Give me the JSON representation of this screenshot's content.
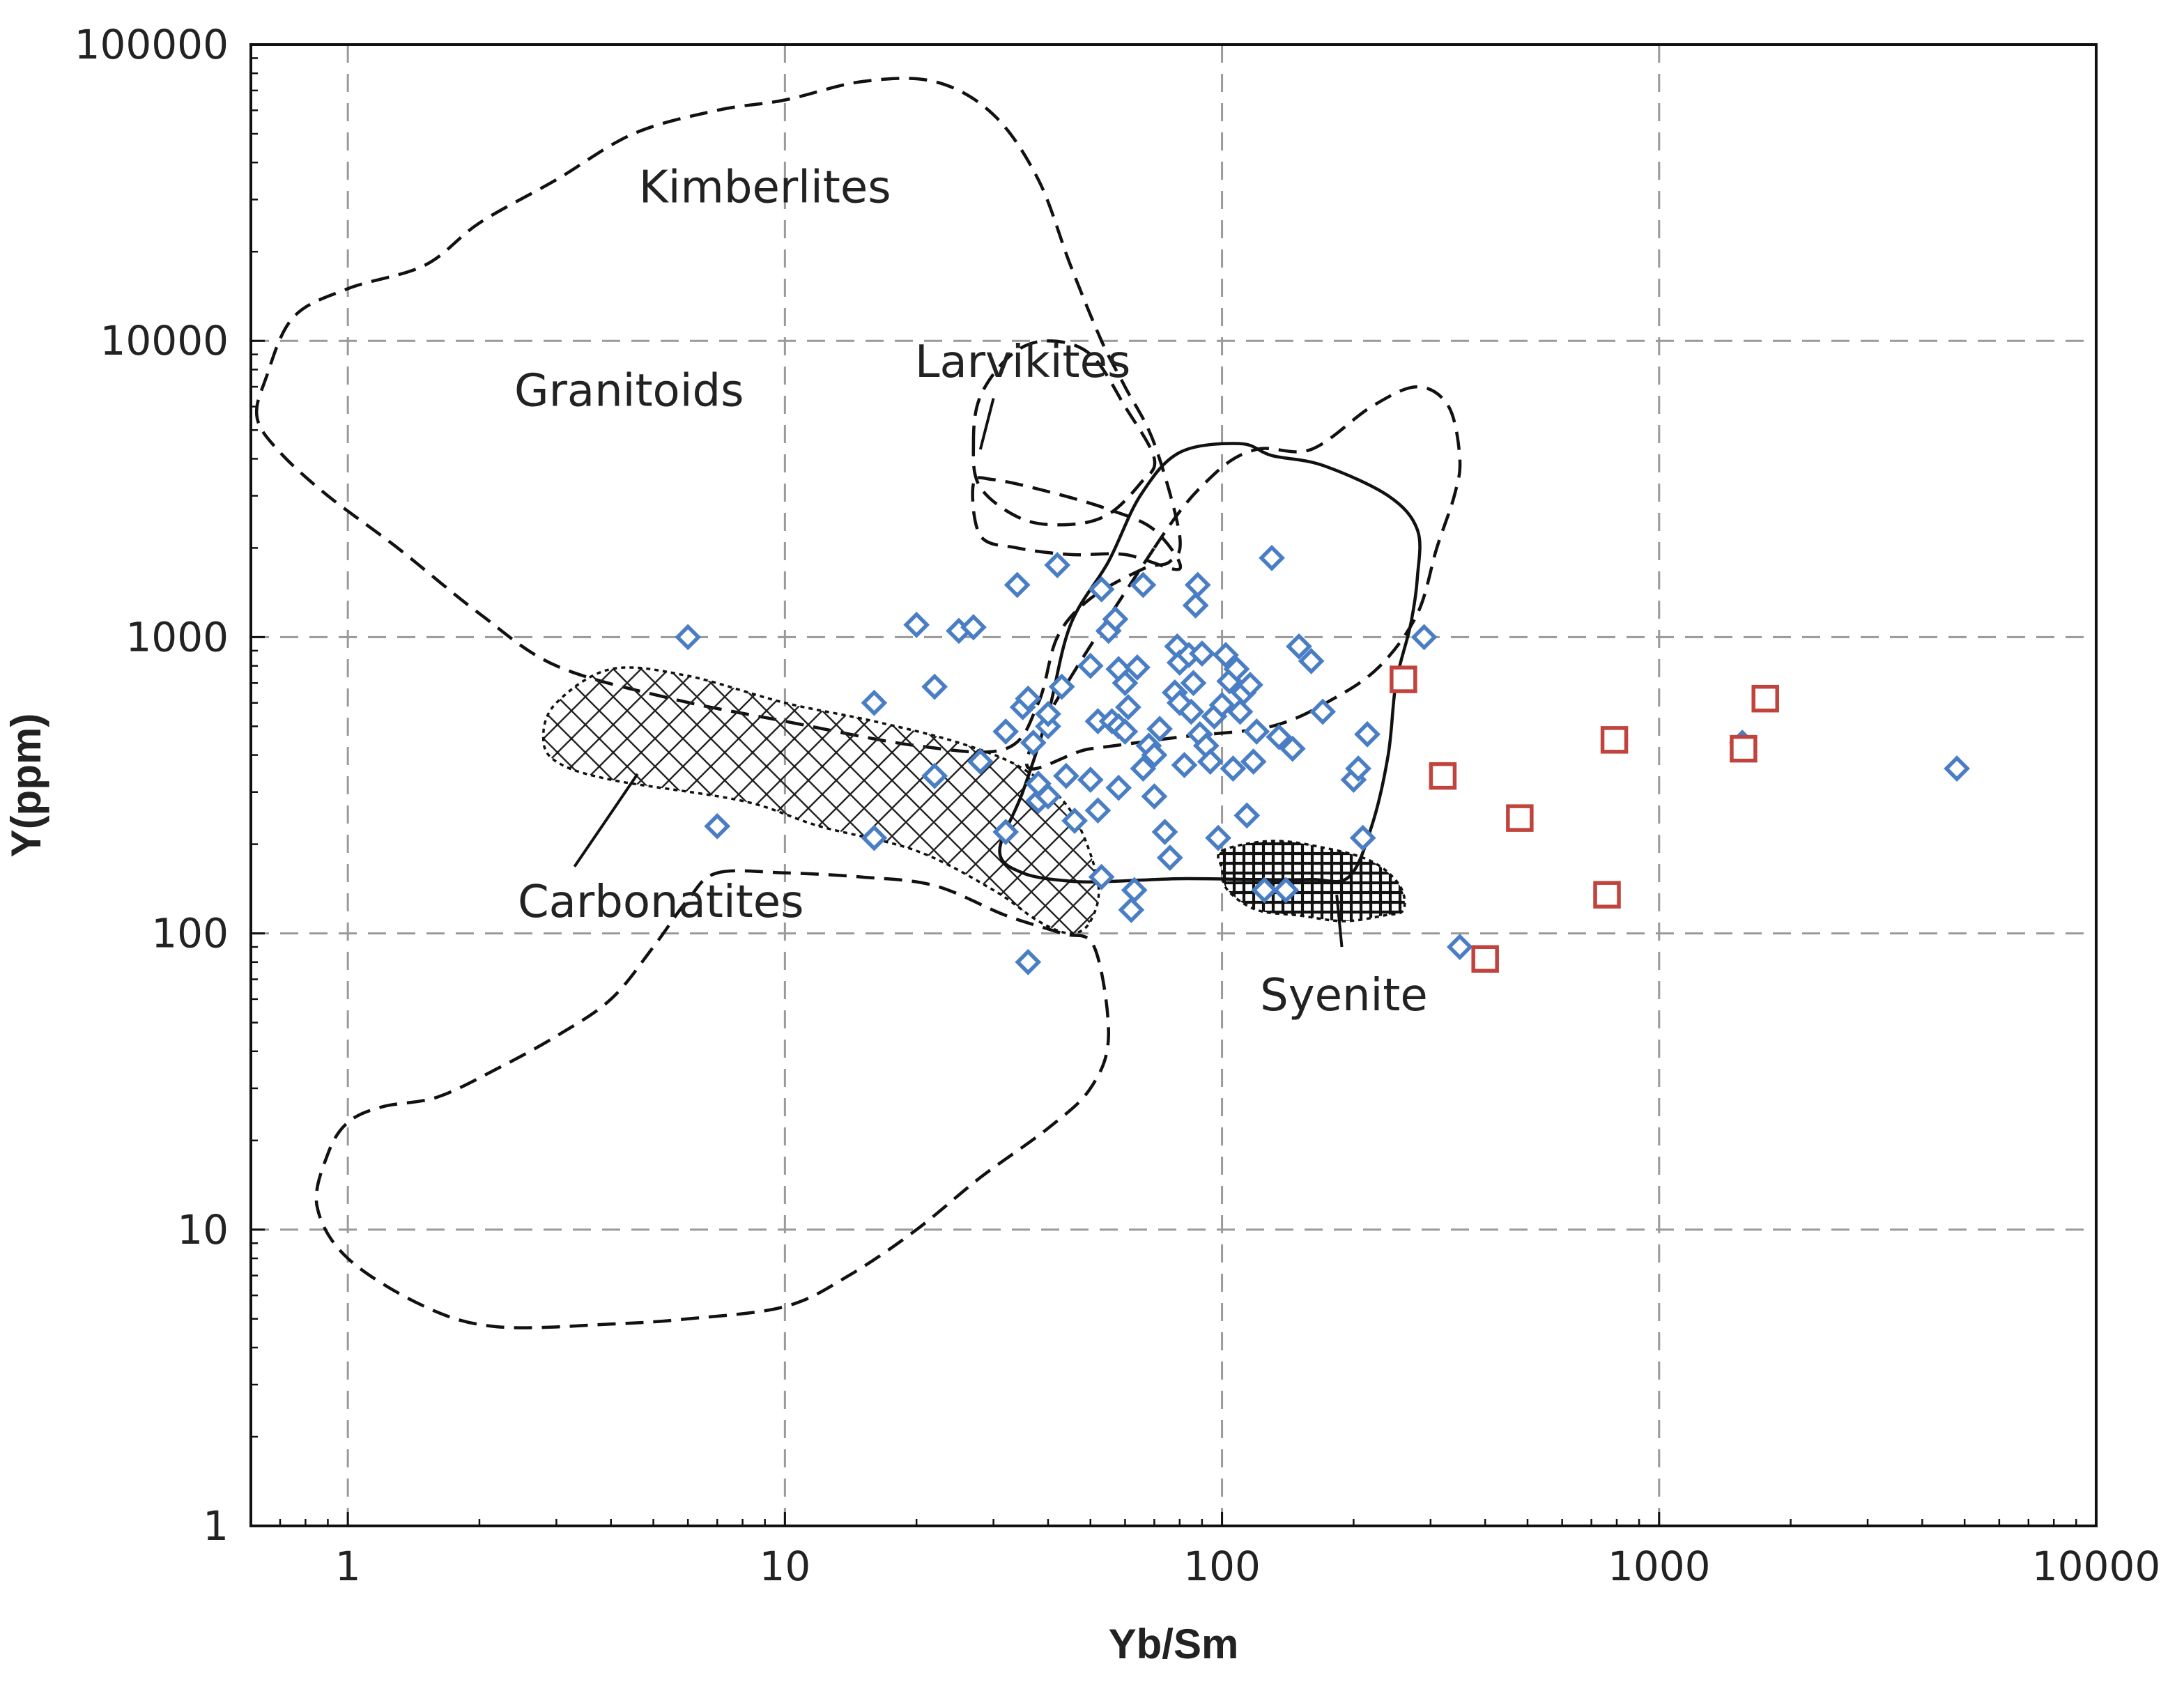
{
  "chart_data": {
    "type": "scatter",
    "title": "",
    "xlabel": "Yb/Sm",
    "ylabel": "Y(ppm)",
    "xscale": "log",
    "yscale": "log",
    "xlim": [
      0.6,
      10000
    ],
    "ylim": [
      1,
      100000
    ],
    "grid": true,
    "x_ticks": [
      1,
      10,
      100,
      1000,
      10000
    ],
    "x_tick_labels": [
      "1",
      "10",
      "100",
      "1000",
      "10000"
    ],
    "y_ticks": [
      1,
      10,
      100,
      1000,
      10000,
      100000
    ],
    "y_tick_labels": [
      "1",
      "10",
      "100",
      "1000",
      "10000",
      "100000"
    ],
    "fields": [
      {
        "name": "Granitoids",
        "label": "Granitoids",
        "style": "dashed",
        "label_at": [
          4.4,
          6800
        ],
        "outline": [
          [
            0.62,
            5500
          ],
          [
            0.65,
            7500
          ],
          [
            0.75,
            12000
          ],
          [
            1.0,
            15000
          ],
          [
            1.5,
            18000
          ],
          [
            2.0,
            25000
          ],
          [
            3.0,
            35000
          ],
          [
            4.5,
            50000
          ],
          [
            7.0,
            60000
          ],
          [
            10,
            65000
          ],
          [
            15,
            75000
          ],
          [
            22,
            75000
          ],
          [
            30,
            58000
          ],
          [
            38,
            35000
          ],
          [
            45,
            18000
          ],
          [
            53,
            10000
          ],
          [
            60,
            7000
          ],
          [
            70,
            4500
          ],
          [
            80,
            2200
          ],
          [
            76,
            1800
          ],
          [
            66,
            1700
          ],
          [
            50,
            1350
          ],
          [
            42,
            1000
          ],
          [
            38,
            600
          ],
          [
            32,
            420
          ],
          [
            20,
            430
          ],
          [
            10,
            520
          ],
          [
            5.5,
            620
          ],
          [
            3.0,
            800
          ],
          [
            2.0,
            1200
          ],
          [
            1.3,
            2000
          ],
          [
            0.9,
            3000
          ],
          [
            0.7,
            4200
          ]
        ]
      },
      {
        "name": "Larvikites",
        "label": "Larvikites",
        "style": "dashed",
        "label_at": [
          35,
          8500
        ],
        "outlines": [
          [
            [
              27,
              4500
            ],
            [
              28,
              6500
            ],
            [
              33,
              9000
            ],
            [
              40,
              10000
            ],
            [
              50,
              9000
            ],
            [
              60,
              6000
            ],
            [
              70,
              4000
            ],
            [
              65,
              3300
            ],
            [
              55,
              2600
            ],
            [
              45,
              2400
            ],
            [
              35,
              2500
            ],
            [
              28,
              3200
            ]
          ],
          [
            [
              27,
              3300
            ],
            [
              28,
              2200
            ],
            [
              34,
              2000
            ],
            [
              45,
              1900
            ],
            [
              60,
              1900
            ],
            [
              80,
              1700
            ],
            [
              70,
              2300
            ],
            [
              55,
              2700
            ],
            [
              40,
              3100
            ],
            [
              30,
              3400
            ]
          ]
        ]
      },
      {
        "name": "Kimberlites",
        "label": "Kimberlites",
        "style": "dashed",
        "label_at": [
          9,
          33000
        ],
        "outline": [
          [
            7,
            160
          ],
          [
            10,
            160
          ],
          [
            15,
            155
          ],
          [
            22,
            145
          ],
          [
            32,
            115
          ],
          [
            43,
            100
          ],
          [
            51,
            90
          ],
          [
            55,
            45
          ],
          [
            50,
            30
          ],
          [
            40,
            22
          ],
          [
            28,
            15
          ],
          [
            20,
            10
          ],
          [
            14,
            7
          ],
          [
            10,
            5.5
          ],
          [
            6,
            5
          ],
          [
            4,
            4.8
          ],
          [
            2.2,
            4.7
          ],
          [
            1.5,
            5.5
          ],
          [
            1.0,
            8
          ],
          [
            0.85,
            12
          ],
          [
            0.9,
            18
          ],
          [
            1.0,
            23
          ],
          [
            1.2,
            26
          ],
          [
            1.6,
            28
          ],
          [
            2.2,
            35
          ],
          [
            3,
            45
          ],
          [
            4,
            60
          ],
          [
            5,
            90
          ],
          [
            6,
            130
          ]
        ]
      },
      {
        "name": "Carbonatites",
        "label": "Carbonatites",
        "style": "crosshatch",
        "label_at": [
          5.2,
          128
        ],
        "outline": [
          [
            3.0,
            600
          ],
          [
            4.0,
            780
          ],
          [
            6,
            740
          ],
          [
            10,
            600
          ],
          [
            16,
            520
          ],
          [
            25,
            440
          ],
          [
            35,
            360
          ],
          [
            45,
            260
          ],
          [
            52,
            150
          ],
          [
            50,
            110
          ],
          [
            45,
            100
          ],
          [
            38,
            110
          ],
          [
            30,
            140
          ],
          [
            20,
            190
          ],
          [
            12,
            230
          ],
          [
            8,
            280
          ],
          [
            4,
            330
          ],
          [
            3,
            380
          ],
          [
            2.8,
            460
          ]
        ]
      },
      {
        "name": "Syenite",
        "label": "Syenite",
        "style": "dense-hatch",
        "label_at": [
          190,
          62
        ],
        "outline": [
          [
            100,
            190
          ],
          [
            130,
            205
          ],
          [
            170,
            195
          ],
          [
            220,
            175
          ],
          [
            255,
            145
          ],
          [
            260,
            120
          ],
          [
            235,
            115
          ],
          [
            190,
            110
          ],
          [
            150,
            115
          ],
          [
            120,
            120
          ],
          [
            103,
            140
          ],
          [
            100,
            165
          ]
        ]
      },
      {
        "name": "Solid field",
        "label": "",
        "style": "solid",
        "outline": [
          [
            31,
            190
          ],
          [
            35,
            300
          ],
          [
            40,
            550
          ],
          [
            45,
            1100
          ],
          [
            55,
            1800
          ],
          [
            65,
            3000
          ],
          [
            80,
            4200
          ],
          [
            110,
            4500
          ],
          [
            130,
            4100
          ],
          [
            170,
            3800
          ],
          [
            240,
            3000
          ],
          [
            280,
            2300
          ],
          [
            280,
            1600
          ],
          [
            270,
            1100
          ],
          [
            250,
            700
          ],
          [
            240,
            400
          ],
          [
            220,
            230
          ],
          [
            195,
            155
          ],
          [
            160,
            152
          ],
          [
            120,
            152
          ],
          [
            80,
            153
          ],
          [
            57,
            150
          ],
          [
            45,
            150
          ],
          [
            35,
            160
          ]
        ]
      },
      {
        "name": "Dashed field",
        "label": "",
        "style": "dashed",
        "outline": [
          [
            70,
            2000
          ],
          [
            95,
            3500
          ],
          [
            120,
            4300
          ],
          [
            160,
            4300
          ],
          [
            220,
            6000
          ],
          [
            280,
            7000
          ],
          [
            330,
            6000
          ],
          [
            350,
            4000
          ],
          [
            340,
            3000
          ],
          [
            310,
            2000
          ],
          [
            280,
            1200
          ],
          [
            230,
            800
          ],
          [
            180,
            620
          ],
          [
            130,
            500
          ],
          [
            80,
            460
          ],
          [
            50,
            420
          ],
          [
            36,
            400
          ]
        ]
      }
    ],
    "callouts": [
      {
        "from": [
          4.6,
          345
        ],
        "to": [
          3.3,
          168
        ]
      },
      {
        "from": [
          30,
          6400
        ],
        "to": [
          28,
          4300
        ]
      },
      {
        "from": [
          188,
          90
        ],
        "to": [
          183,
          135
        ]
      }
    ],
    "series": [
      {
        "name": "Blue diamonds",
        "marker": "diamond",
        "color": "#4a7ec4",
        "points": [
          [
            6,
            1000
          ],
          [
            7,
            230
          ],
          [
            16,
            600
          ],
          [
            16,
            210
          ],
          [
            20,
            1100
          ],
          [
            22,
            680
          ],
          [
            22,
            340
          ],
          [
            25,
            1050
          ],
          [
            27,
            1080
          ],
          [
            28,
            380
          ],
          [
            32,
            480
          ],
          [
            32,
            220
          ],
          [
            34,
            1500
          ],
          [
            35,
            580
          ],
          [
            36,
            620
          ],
          [
            36,
            80
          ],
          [
            37,
            440
          ],
          [
            38,
            280
          ],
          [
            38,
            320
          ],
          [
            40,
            500
          ],
          [
            40,
            550
          ],
          [
            40,
            290
          ],
          [
            42,
            1750
          ],
          [
            43,
            680
          ],
          [
            44,
            340
          ],
          [
            46,
            240
          ],
          [
            50,
            800
          ],
          [
            50,
            330
          ],
          [
            52,
            520
          ],
          [
            52,
            260
          ],
          [
            53,
            1450
          ],
          [
            53,
            155
          ],
          [
            55,
            1050
          ],
          [
            56,
            520
          ],
          [
            57,
            1150
          ],
          [
            58,
            780
          ],
          [
            58,
            500
          ],
          [
            58,
            310
          ],
          [
            60,
            700
          ],
          [
            60,
            480
          ],
          [
            61,
            580
          ],
          [
            62,
            120
          ],
          [
            63,
            140
          ],
          [
            64,
            790
          ],
          [
            66,
            1500
          ],
          [
            66,
            360
          ],
          [
            68,
            430
          ],
          [
            70,
            400
          ],
          [
            70,
            290
          ],
          [
            72,
            490
          ],
          [
            74,
            220
          ],
          [
            76,
            180
          ],
          [
            78,
            650
          ],
          [
            79,
            930
          ],
          [
            80,
            820
          ],
          [
            80,
            600
          ],
          [
            82,
            370
          ],
          [
            84,
            870
          ],
          [
            85,
            560
          ],
          [
            86,
            700
          ],
          [
            87,
            1280
          ],
          [
            88,
            1500
          ],
          [
            89,
            470
          ],
          [
            90,
            880
          ],
          [
            92,
            430
          ],
          [
            94,
            380
          ],
          [
            96,
            540
          ],
          [
            98,
            210
          ],
          [
            100,
            590
          ],
          [
            102,
            870
          ],
          [
            104,
            710
          ],
          [
            106,
            360
          ],
          [
            108,
            780
          ],
          [
            110,
            560
          ],
          [
            112,
            650
          ],
          [
            114,
            250
          ],
          [
            116,
            690
          ],
          [
            118,
            380
          ],
          [
            120,
            480
          ],
          [
            125,
            140
          ],
          [
            130,
            1850
          ],
          [
            135,
            460
          ],
          [
            140,
            140
          ],
          [
            145,
            420
          ],
          [
            150,
            930
          ],
          [
            160,
            830
          ],
          [
            170,
            560
          ],
          [
            200,
            330
          ],
          [
            205,
            360
          ],
          [
            210,
            210
          ],
          [
            215,
            470
          ],
          [
            290,
            1000
          ],
          [
            350,
            90
          ],
          [
            1550,
            440
          ],
          [
            4800,
            360
          ]
        ]
      },
      {
        "name": "Red squares",
        "marker": "square",
        "color": "#c0443d",
        "points": [
          [
            260,
            720
          ],
          [
            320,
            340
          ],
          [
            400,
            82
          ],
          [
            480,
            245
          ],
          [
            760,
            135
          ],
          [
            790,
            450
          ],
          [
            1560,
            420
          ],
          [
            1750,
            620
          ]
        ]
      }
    ]
  }
}
